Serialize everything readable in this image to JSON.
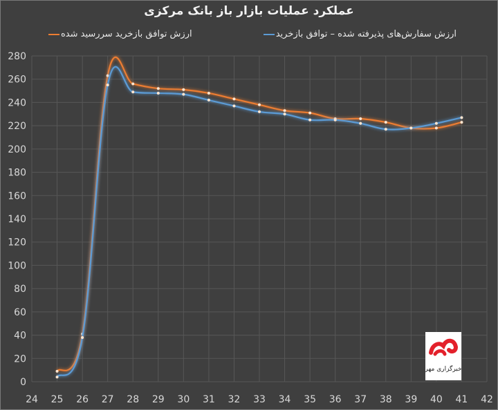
{
  "chart_data": {
    "type": "line",
    "title": "عملکرد عملیات بازار باز بانک مرکزی",
    "xlabel": "",
    "ylabel": "",
    "x_ticks": [
      24,
      25,
      26,
      27,
      28,
      29,
      30,
      31,
      32,
      33,
      34,
      35,
      36,
      37,
      38,
      39,
      40,
      41,
      42
    ],
    "y_ticks": [
      0,
      20,
      40,
      60,
      80,
      100,
      120,
      140,
      160,
      180,
      200,
      220,
      240,
      260,
      280
    ],
    "xlim": [
      24,
      42
    ],
    "ylim": [
      0,
      280
    ],
    "grid": true,
    "legend_position": "top",
    "x": [
      25,
      26,
      27,
      28,
      29,
      30,
      31,
      32,
      33,
      34,
      35,
      36,
      37,
      38,
      39,
      40,
      41
    ],
    "series": [
      {
        "name": "ارزش توافق بازخرید سررسید شده",
        "color": "#ed7d31",
        "values": [
          9,
          41,
          263,
          256,
          252,
          251,
          248,
          243,
          238,
          233,
          231,
          226,
          226,
          223,
          218,
          218,
          223
        ]
      },
      {
        "name": "ارزش سفارش‌های پذیرفته شده – توافق بازخرید",
        "color": "#5b9bd5",
        "values": [
          4,
          38,
          255,
          249,
          248,
          247,
          242,
          237,
          232,
          230,
          225,
          225,
          222,
          217,
          218,
          222,
          227
        ]
      }
    ]
  },
  "logo": {
    "text": "خبرگزاری مهر"
  }
}
